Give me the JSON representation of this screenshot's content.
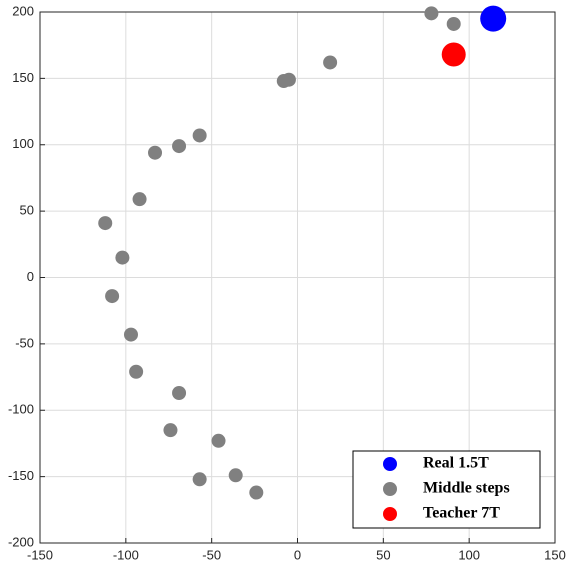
{
  "chart_data": {
    "type": "scatter",
    "xlim": [
      -150,
      150
    ],
    "xticks": [
      -150,
      -100,
      -50,
      0,
      50,
      100,
      150
    ],
    "ylim": [
      -200,
      200
    ],
    "yticks": [
      -200,
      -150,
      -100,
      -50,
      0,
      50,
      100,
      150,
      200
    ],
    "grid": true,
    "legend": "lower right",
    "series": [
      {
        "name": "Real 1.5T",
        "color": "#0000ff",
        "marker_size": 13,
        "x": [
          114
        ],
        "y": [
          195
        ]
      },
      {
        "name": "Middle steps",
        "color": "#808080",
        "marker_size": 7,
        "x": [
          78,
          91,
          19,
          -5,
          -8,
          -57,
          -69,
          -83,
          -92,
          -112,
          -102,
          -108,
          -97,
          -94,
          -69,
          -74,
          -46,
          -36,
          -57,
          -24
        ],
        "y": [
          199,
          191,
          162,
          149,
          148,
          107,
          99,
          94,
          59,
          41,
          15,
          -14,
          -43,
          -71,
          -87,
          -115,
          -123,
          -149,
          -152,
          -162
        ]
      },
      {
        "name": "Teacher 7T",
        "color": "#ff0000",
        "marker_size": 12,
        "x": [
          91
        ],
        "y": [
          168
        ]
      }
    ]
  }
}
